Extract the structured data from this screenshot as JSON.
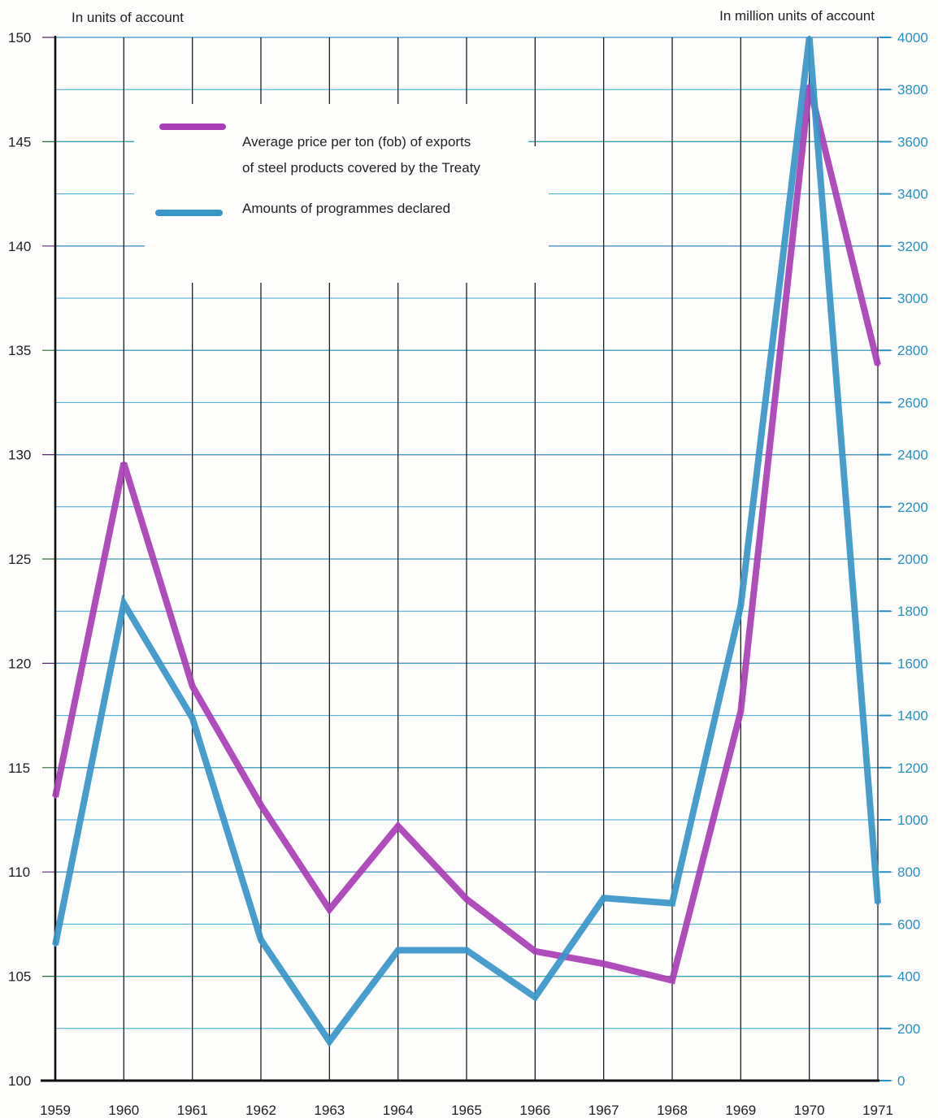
{
  "chart_data": {
    "type": "line",
    "x": [
      "1959",
      "1960",
      "1961",
      "1962",
      "1963",
      "1964",
      "1965",
      "1966",
      "1967",
      "1968",
      "1969",
      "1970",
      "1971"
    ],
    "left_axis": {
      "label": "In units of account",
      "ylim": [
        100,
        150
      ],
      "ticks": [
        "150",
        "145",
        "140",
        "135",
        "130",
        "125",
        "120",
        "115",
        "110",
        "105",
        "100"
      ]
    },
    "right_axis": {
      "label": "In million units of account",
      "ylim": [
        0,
        4000
      ],
      "ticks": [
        "4000",
        "3800",
        "3600",
        "3400",
        "3200",
        "3000",
        "2800",
        "2600",
        "2400",
        "2200",
        "2000",
        "1800",
        "1600",
        "1400",
        "1200",
        "1000",
        "800",
        "600",
        "400",
        "200",
        "0"
      ]
    },
    "series": [
      {
        "name": "Average price per ton (fob) of exports of steel products covered by the Treaty",
        "legend_lines": [
          "Average price per ton (fob) of exports",
          "of steel products covered by the Treaty"
        ],
        "axis": "left",
        "color": "#a83fb5",
        "values": [
          113.6,
          129.6,
          118.9,
          113.2,
          108.2,
          112.2,
          108.7,
          106.2,
          105.6,
          104.8,
          117.7,
          147.7,
          134.3
        ]
      },
      {
        "name": "Amounts of programmes declared",
        "legend_lines": [
          "Amounts of programmes declared"
        ],
        "axis": "right",
        "color": "#3a95c8",
        "values": [
          520,
          1830,
          1390,
          540,
          150,
          500,
          500,
          320,
          700,
          680,
          1820,
          4000,
          680
        ]
      }
    ],
    "grid": true,
    "legend_placement": "upper-left"
  }
}
